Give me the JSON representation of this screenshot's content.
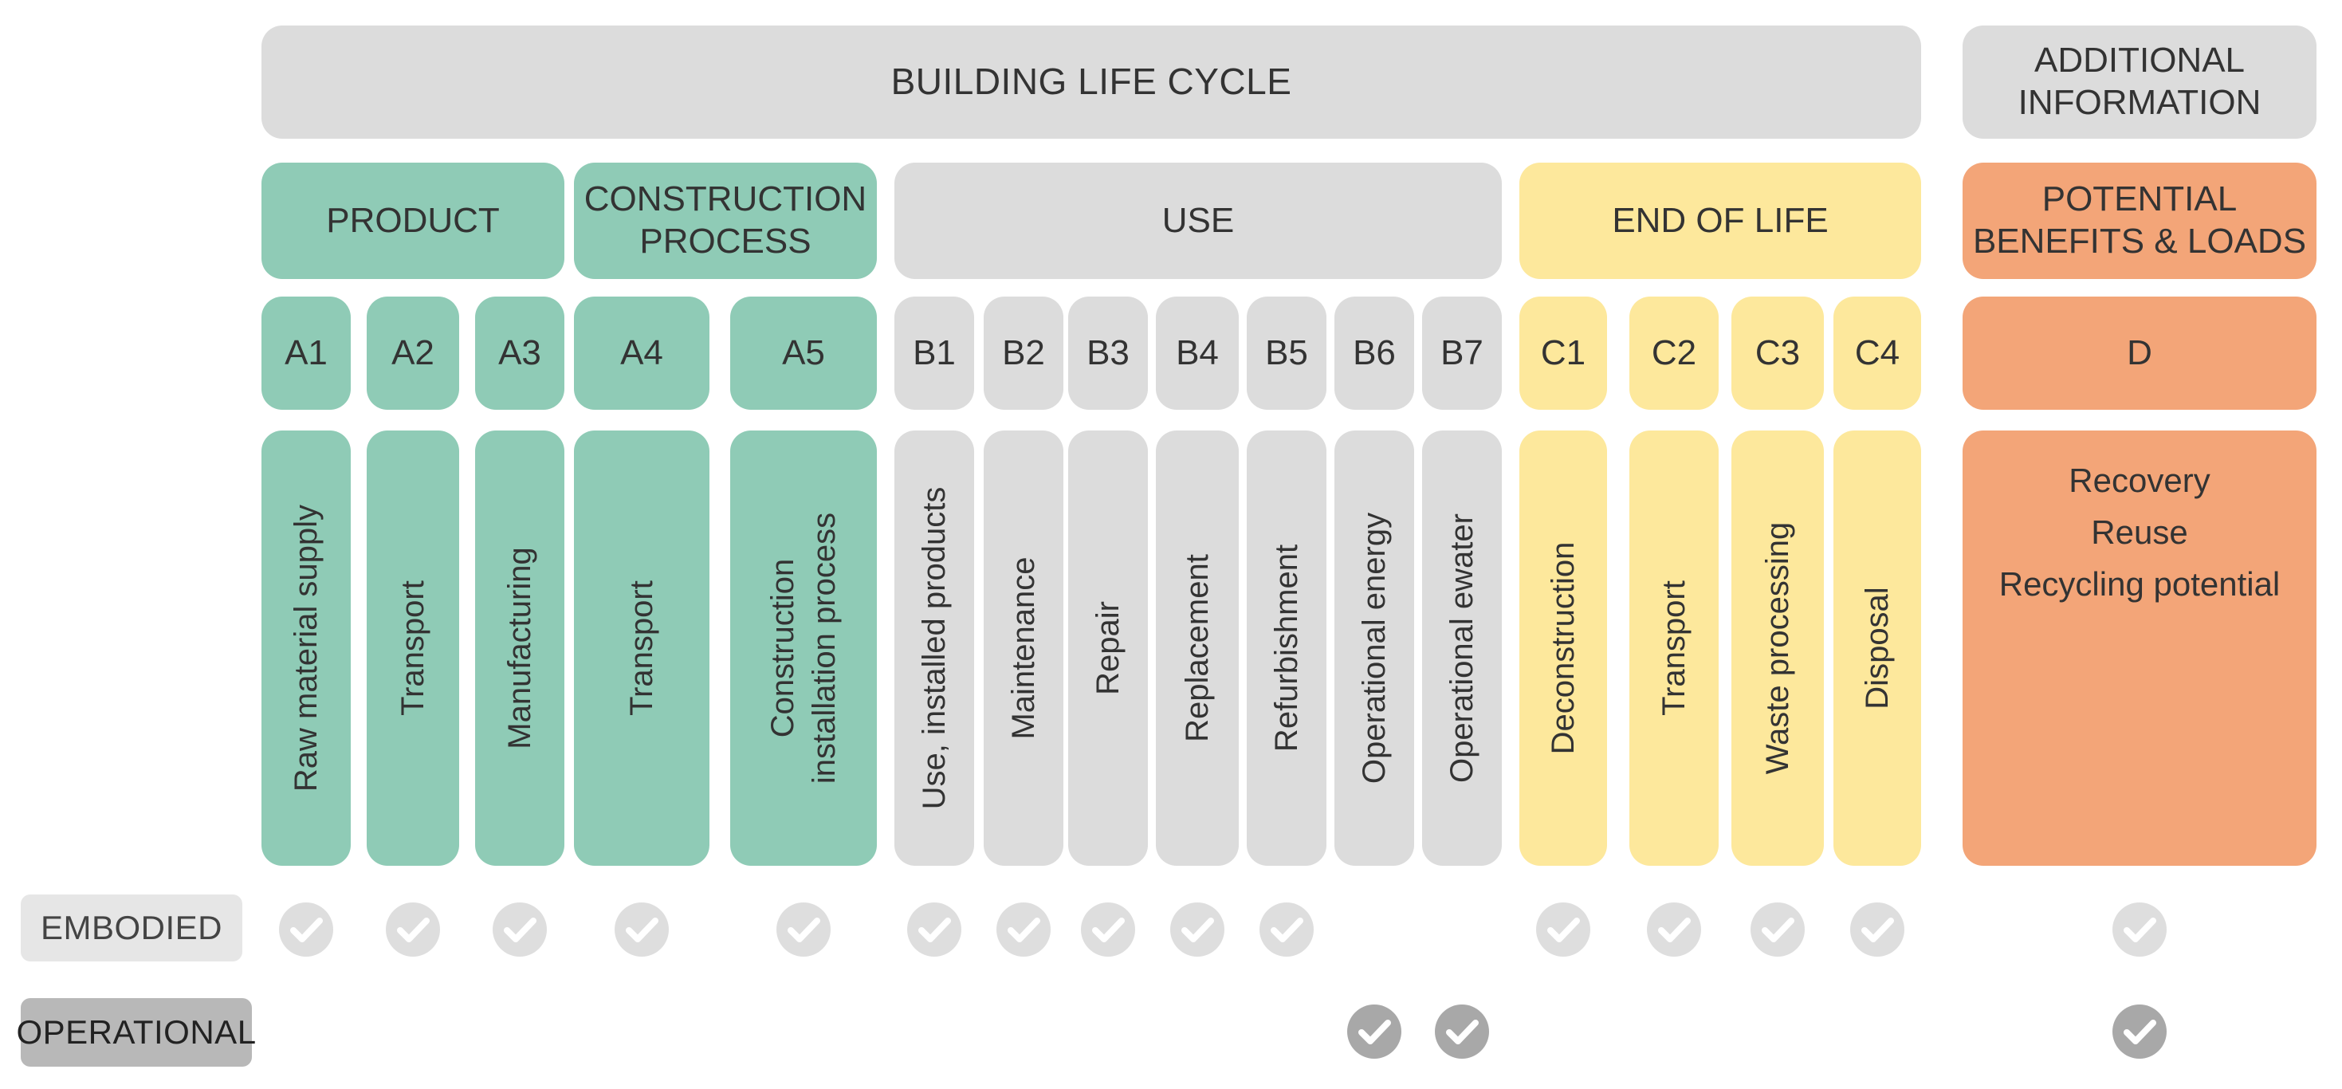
{
  "bands": {
    "building_life_cycle": "BUILDING LIFE CYCLE",
    "additional_information": "ADDITIONAL\nINFORMATION"
  },
  "stages": {
    "product": "PRODUCT",
    "construction_process": "CONSTRUCTION\nPROCESS",
    "use": "USE",
    "end_of_life": "END OF LIFE",
    "potential_benefits": "POTENTIAL\nBENEFITS & LOADS"
  },
  "modules": [
    {
      "code": "A1",
      "label": "Raw material supply"
    },
    {
      "code": "A2",
      "label": "Transport"
    },
    {
      "code": "A3",
      "label": "Manufacturing"
    },
    {
      "code": "A4",
      "label": "Transport"
    },
    {
      "code": "A5",
      "label": "Construction\ninstallation process"
    },
    {
      "code": "B1",
      "label": "Use, installed products"
    },
    {
      "code": "B2",
      "label": "Maintenance"
    },
    {
      "code": "B3",
      "label": "Repair"
    },
    {
      "code": "B4",
      "label": "Replacement"
    },
    {
      "code": "B5",
      "label": "Refurbishment"
    },
    {
      "code": "B6",
      "label": "Operational energy"
    },
    {
      "code": "B7",
      "label": "Operational ewater"
    },
    {
      "code": "C1",
      "label": "Deconstruction"
    },
    {
      "code": "C2",
      "label": "Transport"
    },
    {
      "code": "C3",
      "label": "Waste processing"
    },
    {
      "code": "C4",
      "label": "Disposal"
    }
  ],
  "module_d": {
    "code": "D",
    "label": "Recovery\nReuse\nRecycling potential"
  },
  "rows": {
    "embodied": "EMBODIED",
    "operational": "OPERATIONAL"
  },
  "embodied_checks": [
    "A1",
    "A2",
    "A3",
    "A4",
    "A5",
    "B1",
    "B2",
    "B3",
    "B4",
    "B5",
    "C1",
    "C2",
    "C3",
    "C4",
    "D"
  ],
  "operational_checks": [
    "B6",
    "B7",
    "D"
  ],
  "colors": {
    "product": "#8fcbb6",
    "use": "#dcdcdc",
    "end_of_life": "#fde89c",
    "benefits": "#f3a578",
    "check_embodied": "#dedede",
    "check_operational": "#a8a8a8"
  }
}
